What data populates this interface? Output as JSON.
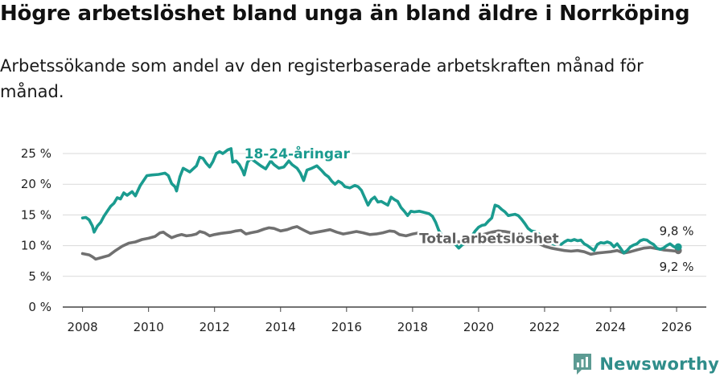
{
  "title": "Högre arbetslöshet bland unga än bland äldre i Norrköping",
  "subtitle": "Arbetssökande som andel av den registerbaserade arbetskraften månad för månad.",
  "brand": {
    "name": "Newsworthy",
    "icon": "newsworthy-logo-icon",
    "color": "#5d9b93"
  },
  "chart_data": {
    "type": "line",
    "title": "Högre arbetslöshet bland unga än bland äldre i Norrköping",
    "xlabel": "",
    "ylabel": "",
    "xlim": [
      2007.4,
      2026.9
    ],
    "ylim": [
      0,
      25
    ],
    "grid": true,
    "yticks": [
      0,
      5,
      10,
      15,
      20,
      25
    ],
    "ytick_labels": [
      "0 %",
      "5 %",
      "10 %",
      "15 %",
      "20 %",
      "25 %"
    ],
    "xticks": [
      2008,
      2010,
      2012,
      2014,
      2016,
      2018,
      2020,
      2022,
      2024,
      2026
    ],
    "xtick_labels": [
      "2008",
      "2010",
      "2012",
      "2014",
      "2016",
      "2018",
      "2020",
      "2022",
      "2024",
      "2026"
    ],
    "series": [
      {
        "name": "18-24-åringar",
        "label": "18-24-åringar",
        "color": "#1a9b8f",
        "end_label": "9,8 %",
        "points": [
          [
            2008.0,
            14.5
          ],
          [
            2008.1,
            14.6
          ],
          [
            2008.2,
            14.2
          ],
          [
            2008.3,
            13.2
          ],
          [
            2008.35,
            12.2
          ],
          [
            2008.45,
            13.2
          ],
          [
            2008.55,
            13.8
          ],
          [
            2008.65,
            14.8
          ],
          [
            2008.75,
            15.6
          ],
          [
            2008.85,
            16.4
          ],
          [
            2008.95,
            16.9
          ],
          [
            2009.05,
            17.8
          ],
          [
            2009.15,
            17.6
          ],
          [
            2009.25,
            18.6
          ],
          [
            2009.35,
            18.2
          ],
          [
            2009.5,
            18.8
          ],
          [
            2009.6,
            18.1
          ],
          [
            2009.75,
            19.8
          ],
          [
            2009.85,
            20.6
          ],
          [
            2009.95,
            21.4
          ],
          [
            2010.1,
            21.5
          ],
          [
            2010.3,
            21.6
          ],
          [
            2010.5,
            21.8
          ],
          [
            2010.6,
            21.4
          ],
          [
            2010.7,
            20.1
          ],
          [
            2010.8,
            19.6
          ],
          [
            2010.85,
            18.9
          ],
          [
            2010.95,
            21.2
          ],
          [
            2011.05,
            22.6
          ],
          [
            2011.15,
            22.3
          ],
          [
            2011.25,
            22.0
          ],
          [
            2011.35,
            22.5
          ],
          [
            2011.45,
            23.0
          ],
          [
            2011.55,
            24.4
          ],
          [
            2011.65,
            24.2
          ],
          [
            2011.75,
            23.4
          ],
          [
            2011.85,
            22.8
          ],
          [
            2011.95,
            23.7
          ],
          [
            2012.05,
            25.0
          ],
          [
            2012.15,
            25.3
          ],
          [
            2012.25,
            25.0
          ],
          [
            2012.4,
            25.6
          ],
          [
            2012.5,
            25.8
          ],
          [
            2012.55,
            23.6
          ],
          [
            2012.65,
            23.8
          ],
          [
            2012.75,
            23.2
          ],
          [
            2012.85,
            22.2
          ],
          [
            2012.9,
            21.5
          ],
          [
            2013.0,
            23.6
          ],
          [
            2013.1,
            24.2
          ],
          [
            2013.2,
            23.8
          ],
          [
            2013.4,
            23.0
          ],
          [
            2013.55,
            22.5
          ],
          [
            2013.7,
            23.8
          ],
          [
            2013.8,
            23.2
          ],
          [
            2013.95,
            22.6
          ],
          [
            2014.1,
            22.8
          ],
          [
            2014.25,
            23.8
          ],
          [
            2014.35,
            23.2
          ],
          [
            2014.5,
            22.6
          ],
          [
            2014.6,
            21.8
          ],
          [
            2014.7,
            20.6
          ],
          [
            2014.8,
            22.3
          ],
          [
            2014.95,
            22.6
          ],
          [
            2015.1,
            23.0
          ],
          [
            2015.25,
            22.2
          ],
          [
            2015.35,
            21.6
          ],
          [
            2015.45,
            21.2
          ],
          [
            2015.55,
            20.5
          ],
          [
            2015.65,
            20.0
          ],
          [
            2015.75,
            20.5
          ],
          [
            2015.85,
            20.2
          ],
          [
            2015.95,
            19.6
          ],
          [
            2016.1,
            19.4
          ],
          [
            2016.25,
            19.8
          ],
          [
            2016.35,
            19.6
          ],
          [
            2016.45,
            19.0
          ],
          [
            2016.55,
            17.8
          ],
          [
            2016.65,
            16.6
          ],
          [
            2016.75,
            17.5
          ],
          [
            2016.85,
            17.9
          ],
          [
            2016.95,
            17.1
          ],
          [
            2017.05,
            17.2
          ],
          [
            2017.15,
            16.9
          ],
          [
            2017.25,
            16.6
          ],
          [
            2017.35,
            17.9
          ],
          [
            2017.45,
            17.5
          ],
          [
            2017.55,
            17.2
          ],
          [
            2017.65,
            16.2
          ],
          [
            2017.75,
            15.6
          ],
          [
            2017.85,
            14.9
          ],
          [
            2017.95,
            15.6
          ],
          [
            2018.05,
            15.5
          ],
          [
            2018.2,
            15.6
          ],
          [
            2018.35,
            15.4
          ],
          [
            2018.5,
            15.2
          ],
          [
            2018.6,
            14.8
          ],
          [
            2018.7,
            13.8
          ],
          [
            2018.8,
            12.4
          ],
          [
            2018.9,
            11.6
          ],
          [
            2019.0,
            11.3
          ],
          [
            2019.1,
            11.0
          ],
          [
            2019.2,
            10.6
          ],
          [
            2019.3,
            10.2
          ],
          [
            2019.4,
            9.6
          ],
          [
            2019.5,
            10.1
          ],
          [
            2019.6,
            10.4
          ],
          [
            2019.7,
            10.8
          ],
          [
            2019.8,
            11.6
          ],
          [
            2019.9,
            12.4
          ],
          [
            2020.0,
            13.0
          ],
          [
            2020.1,
            13.3
          ],
          [
            2020.2,
            13.4
          ],
          [
            2020.3,
            14.0
          ],
          [
            2020.4,
            14.5
          ],
          [
            2020.5,
            16.6
          ],
          [
            2020.6,
            16.4
          ],
          [
            2020.7,
            15.9
          ],
          [
            2020.8,
            15.5
          ],
          [
            2020.9,
            14.9
          ],
          [
            2021.0,
            15.0
          ],
          [
            2021.1,
            15.1
          ],
          [
            2021.2,
            14.9
          ],
          [
            2021.3,
            14.3
          ],
          [
            2021.4,
            13.6
          ],
          [
            2021.5,
            12.8
          ],
          [
            2021.6,
            12.4
          ],
          [
            2021.7,
            12.3
          ],
          [
            2021.8,
            12.0
          ],
          [
            2021.9,
            11.6
          ],
          [
            2022.0,
            11.3
          ],
          [
            2022.1,
            10.8
          ],
          [
            2022.2,
            10.4
          ],
          [
            2022.3,
            10.2
          ],
          [
            2022.4,
            10.4
          ],
          [
            2022.5,
            10.2
          ],
          [
            2022.6,
            10.6
          ],
          [
            2022.7,
            10.9
          ],
          [
            2022.8,
            10.8
          ],
          [
            2022.9,
            11.0
          ],
          [
            2023.0,
            10.8
          ],
          [
            2023.1,
            10.9
          ],
          [
            2023.2,
            10.3
          ],
          [
            2023.3,
            10.0
          ],
          [
            2023.4,
            9.6
          ],
          [
            2023.5,
            9.2
          ],
          [
            2023.6,
            10.2
          ],
          [
            2023.7,
            10.5
          ],
          [
            2023.8,
            10.4
          ],
          [
            2023.9,
            10.6
          ],
          [
            2024.0,
            10.4
          ],
          [
            2024.1,
            9.8
          ],
          [
            2024.2,
            10.3
          ],
          [
            2024.3,
            9.6
          ],
          [
            2024.4,
            8.8
          ],
          [
            2024.5,
            9.2
          ],
          [
            2024.6,
            9.8
          ],
          [
            2024.7,
            10.1
          ],
          [
            2024.8,
            10.3
          ],
          [
            2024.9,
            10.8
          ],
          [
            2025.0,
            11.0
          ],
          [
            2025.1,
            10.9
          ],
          [
            2025.2,
            10.5
          ],
          [
            2025.3,
            10.2
          ],
          [
            2025.4,
            9.6
          ],
          [
            2025.5,
            9.4
          ],
          [
            2025.6,
            9.6
          ],
          [
            2025.7,
            10.0
          ],
          [
            2025.8,
            10.3
          ],
          [
            2025.9,
            9.9
          ],
          [
            2026.0,
            9.6
          ],
          [
            2026.05,
            9.8
          ]
        ]
      },
      {
        "name": "Total arbetslöshet",
        "label": "Total arbetslöshet",
        "color": "#707070",
        "end_label": "9,2 %",
        "points": [
          [
            2008.0,
            8.7
          ],
          [
            2008.2,
            8.5
          ],
          [
            2008.3,
            8.2
          ],
          [
            2008.4,
            7.8
          ],
          [
            2008.6,
            8.1
          ],
          [
            2008.8,
            8.4
          ],
          [
            2009.0,
            9.2
          ],
          [
            2009.2,
            9.9
          ],
          [
            2009.4,
            10.4
          ],
          [
            2009.6,
            10.6
          ],
          [
            2009.8,
            11.0
          ],
          [
            2010.0,
            11.2
          ],
          [
            2010.2,
            11.5
          ],
          [
            2010.35,
            12.1
          ],
          [
            2010.45,
            12.2
          ],
          [
            2010.55,
            11.8
          ],
          [
            2010.7,
            11.3
          ],
          [
            2010.85,
            11.6
          ],
          [
            2011.0,
            11.8
          ],
          [
            2011.15,
            11.6
          ],
          [
            2011.3,
            11.7
          ],
          [
            2011.45,
            11.9
          ],
          [
            2011.55,
            12.3
          ],
          [
            2011.7,
            12.1
          ],
          [
            2011.85,
            11.6
          ],
          [
            2012.0,
            11.8
          ],
          [
            2012.2,
            12.0
          ],
          [
            2012.35,
            12.1
          ],
          [
            2012.5,
            12.2
          ],
          [
            2012.65,
            12.4
          ],
          [
            2012.8,
            12.5
          ],
          [
            2012.95,
            11.9
          ],
          [
            2013.1,
            12.1
          ],
          [
            2013.3,
            12.3
          ],
          [
            2013.5,
            12.7
          ],
          [
            2013.65,
            12.9
          ],
          [
            2013.8,
            12.8
          ],
          [
            2014.0,
            12.4
          ],
          [
            2014.2,
            12.6
          ],
          [
            2014.35,
            12.9
          ],
          [
            2014.5,
            13.1
          ],
          [
            2014.6,
            12.8
          ],
          [
            2014.75,
            12.4
          ],
          [
            2014.9,
            12.0
          ],
          [
            2015.1,
            12.2
          ],
          [
            2015.3,
            12.4
          ],
          [
            2015.5,
            12.6
          ],
          [
            2015.7,
            12.2
          ],
          [
            2015.9,
            11.9
          ],
          [
            2016.1,
            12.1
          ],
          [
            2016.3,
            12.3
          ],
          [
            2016.5,
            12.1
          ],
          [
            2016.7,
            11.8
          ],
          [
            2016.9,
            11.9
          ],
          [
            2017.1,
            12.1
          ],
          [
            2017.3,
            12.4
          ],
          [
            2017.45,
            12.3
          ],
          [
            2017.6,
            11.8
          ],
          [
            2017.8,
            11.6
          ],
          [
            2018.0,
            11.9
          ],
          [
            2018.2,
            12.1
          ],
          [
            2018.4,
            11.8
          ],
          [
            2018.6,
            11.4
          ],
          [
            2018.8,
            11.0
          ],
          [
            2019.0,
            10.9
          ],
          [
            2019.2,
            10.8
          ],
          [
            2019.4,
            10.6
          ],
          [
            2019.6,
            10.9
          ],
          [
            2019.8,
            11.2
          ],
          [
            2020.0,
            11.6
          ],
          [
            2020.2,
            11.9
          ],
          [
            2020.4,
            12.2
          ],
          [
            2020.6,
            12.4
          ],
          [
            2020.8,
            12.3
          ],
          [
            2021.0,
            12.1
          ],
          [
            2021.2,
            11.9
          ],
          [
            2021.4,
            11.5
          ],
          [
            2021.6,
            11.0
          ],
          [
            2021.8,
            10.4
          ],
          [
            2022.0,
            9.9
          ],
          [
            2022.2,
            9.6
          ],
          [
            2022.4,
            9.4
          ],
          [
            2022.6,
            9.2
          ],
          [
            2022.8,
            9.1
          ],
          [
            2023.0,
            9.2
          ],
          [
            2023.2,
            9.0
          ],
          [
            2023.4,
            8.6
          ],
          [
            2023.6,
            8.8
          ],
          [
            2023.8,
            8.9
          ],
          [
            2024.0,
            9.0
          ],
          [
            2024.2,
            9.2
          ],
          [
            2024.4,
            8.8
          ],
          [
            2024.6,
            9.0
          ],
          [
            2024.8,
            9.3
          ],
          [
            2025.0,
            9.6
          ],
          [
            2025.2,
            9.7
          ],
          [
            2025.4,
            9.5
          ],
          [
            2025.6,
            9.3
          ],
          [
            2025.8,
            9.2
          ],
          [
            2026.0,
            9.1
          ],
          [
            2026.05,
            9.2
          ]
        ]
      }
    ]
  }
}
